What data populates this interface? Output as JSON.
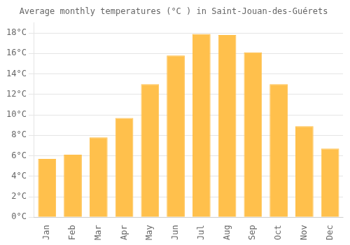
{
  "chart_data": {
    "type": "bar",
    "title": "Average monthly temperatures (°C ) in Saint-Jouan-des-Guérets",
    "categories": [
      "Jan",
      "Feb",
      "Mar",
      "Apr",
      "May",
      "Jun",
      "Jul",
      "Aug",
      "Sep",
      "Oct",
      "Nov",
      "Dec"
    ],
    "values": [
      5.7,
      6.1,
      7.8,
      9.7,
      13.0,
      15.8,
      17.9,
      17.8,
      16.1,
      13.0,
      8.9,
      6.7
    ],
    "color": "#FFC04C",
    "ylim": [
      0,
      19
    ],
    "yticks": [
      {
        "value": 0,
        "label": "0°C"
      },
      {
        "value": 2,
        "label": "2°C"
      },
      {
        "value": 4,
        "label": "4°C"
      },
      {
        "value": 6,
        "label": "6°C"
      },
      {
        "value": 8,
        "label": "8°C"
      },
      {
        "value": 10,
        "label": "10°C"
      },
      {
        "value": 12,
        "label": "12°C"
      },
      {
        "value": 14,
        "label": "14°C"
      },
      {
        "value": 16,
        "label": "16°C"
      },
      {
        "value": 18,
        "label": "18°C"
      }
    ],
    "grid": true
  }
}
